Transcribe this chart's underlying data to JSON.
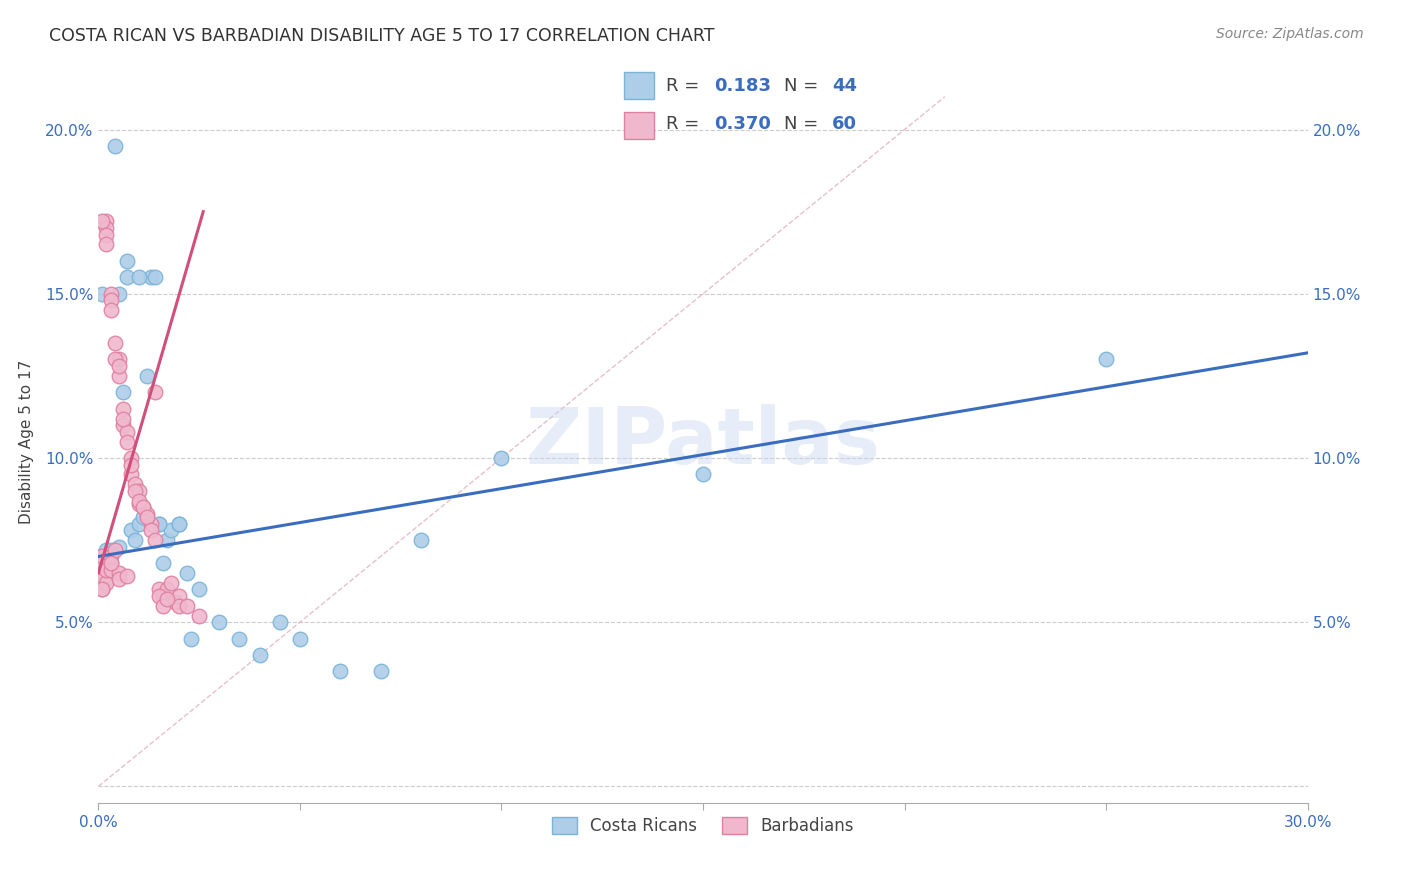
{
  "title": "COSTA RICAN VS BARBADIAN DISABILITY AGE 5 TO 17 CORRELATION CHART",
  "source": "Source: ZipAtlas.com",
  "ylabel": "Disability Age 5 to 17",
  "xlim": [
    0.0,
    0.3
  ],
  "ylim": [
    -0.005,
    0.215
  ],
  "legend_r_color": "#3a6dbf",
  "blue_color": "#7ab4d8",
  "blue_fill": "#aecde8",
  "pink_color": "#e080a0",
  "pink_fill": "#f0b8cc",
  "trend_blue_color": "#3a6dbf",
  "trend_pink_color": "#d0507a",
  "diag_color": "#e0b0c0",
  "watermark": "ZIPatlas",
  "blue_trend_x0": 0.0,
  "blue_trend_y0": 0.07,
  "blue_trend_x1": 0.3,
  "blue_trend_y1": 0.132,
  "pink_trend_x0": 0.0,
  "pink_trend_y0": 0.065,
  "pink_trend_x1": 0.026,
  "pink_trend_y1": 0.175,
  "blue_x": [
    0.001,
    0.001,
    0.002,
    0.002,
    0.003,
    0.003,
    0.004,
    0.005,
    0.006,
    0.007,
    0.008,
    0.009,
    0.01,
    0.011,
    0.012,
    0.013,
    0.014,
    0.015,
    0.016,
    0.017,
    0.018,
    0.02,
    0.022,
    0.023,
    0.025,
    0.03,
    0.035,
    0.04,
    0.045,
    0.05,
    0.06,
    0.07,
    0.08,
    0.1,
    0.15,
    0.25,
    0.001,
    0.002,
    0.003,
    0.005,
    0.007,
    0.01,
    0.015,
    0.02
  ],
  "blue_y": [
    0.07,
    0.068,
    0.072,
    0.066,
    0.072,
    0.068,
    0.195,
    0.073,
    0.12,
    0.16,
    0.078,
    0.075,
    0.08,
    0.082,
    0.125,
    0.155,
    0.155,
    0.08,
    0.068,
    0.075,
    0.078,
    0.08,
    0.065,
    0.045,
    0.06,
    0.05,
    0.045,
    0.04,
    0.05,
    0.045,
    0.035,
    0.035,
    0.075,
    0.1,
    0.095,
    0.13,
    0.15,
    0.063,
    0.071,
    0.15,
    0.155,
    0.155,
    0.08,
    0.08
  ],
  "pink_x": [
    0.001,
    0.001,
    0.001,
    0.001,
    0.001,
    0.002,
    0.002,
    0.002,
    0.002,
    0.002,
    0.003,
    0.003,
    0.003,
    0.003,
    0.004,
    0.004,
    0.005,
    0.005,
    0.005,
    0.005,
    0.006,
    0.006,
    0.007,
    0.007,
    0.008,
    0.008,
    0.009,
    0.01,
    0.01,
    0.011,
    0.012,
    0.013,
    0.014,
    0.015,
    0.016,
    0.017,
    0.018,
    0.019,
    0.02,
    0.02,
    0.022,
    0.025,
    0.001,
    0.001,
    0.002,
    0.003,
    0.003,
    0.004,
    0.005,
    0.006,
    0.007,
    0.008,
    0.009,
    0.01,
    0.011,
    0.012,
    0.013,
    0.014,
    0.015,
    0.016,
    0.017
  ],
  "pink_y": [
    0.065,
    0.068,
    0.07,
    0.063,
    0.06,
    0.172,
    0.17,
    0.168,
    0.062,
    0.066,
    0.15,
    0.148,
    0.066,
    0.07,
    0.072,
    0.135,
    0.13,
    0.125,
    0.065,
    0.063,
    0.115,
    0.11,
    0.108,
    0.064,
    0.1,
    0.095,
    0.092,
    0.09,
    0.086,
    0.085,
    0.083,
    0.08,
    0.12,
    0.06,
    0.058,
    0.06,
    0.062,
    0.056,
    0.058,
    0.055,
    0.055,
    0.052,
    0.172,
    0.06,
    0.165,
    0.145,
    0.068,
    0.13,
    0.128,
    0.112,
    0.105,
    0.098,
    0.09,
    0.087,
    0.085,
    0.082,
    0.078,
    0.075,
    0.058,
    0.055,
    0.057
  ]
}
